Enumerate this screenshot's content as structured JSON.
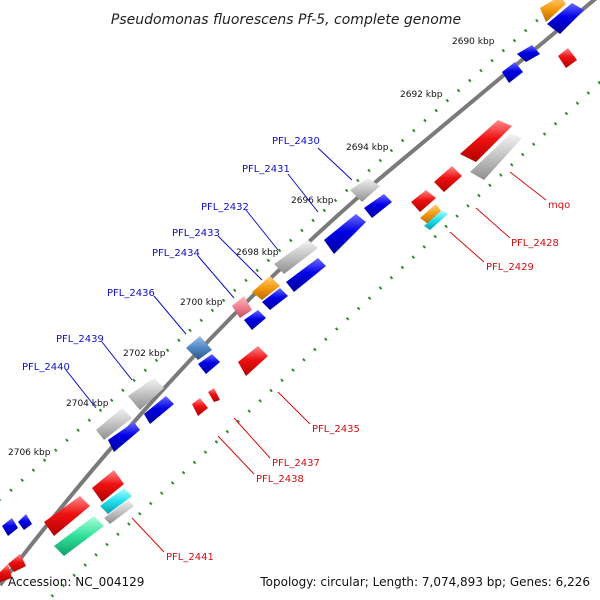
{
  "map": {
    "title": "Pseudomonas fluorescens Pf-5, complete genome",
    "accession": "Accession: NC_004129",
    "summary": "Topology: circular; Length: 7,074,893 bp; Genes: 6,226"
  },
  "colors": {
    "backbone": "#7a7a7a",
    "tick": "#2e8b2e",
    "forward_gene": "#0000e6",
    "reverse_gene": "#ee1111",
    "other_gene": "#b8b8b8",
    "label_top": "#1010c0",
    "label_bottom": "#d01010"
  },
  "ticks": [
    "2690 kbp",
    "2692 kbp",
    "2694 kbp",
    "2696 kbp",
    "2698 kbp",
    "2700 kbp",
    "2702 kbp",
    "2704 kbp",
    "2706 kbp"
  ],
  "labels_top": [
    "PFL_2430",
    "PFL_2431",
    "PFL_2432",
    "PFL_2433",
    "PFL_2434",
    "PFL_2436",
    "PFL_2439",
    "PFL_2440"
  ],
  "labels_bottom": [
    "mqo",
    "PFL_2428",
    "PFL_2429",
    "PFL_2435",
    "PFL_2437",
    "PFL_2438",
    "PFL_2441"
  ]
}
